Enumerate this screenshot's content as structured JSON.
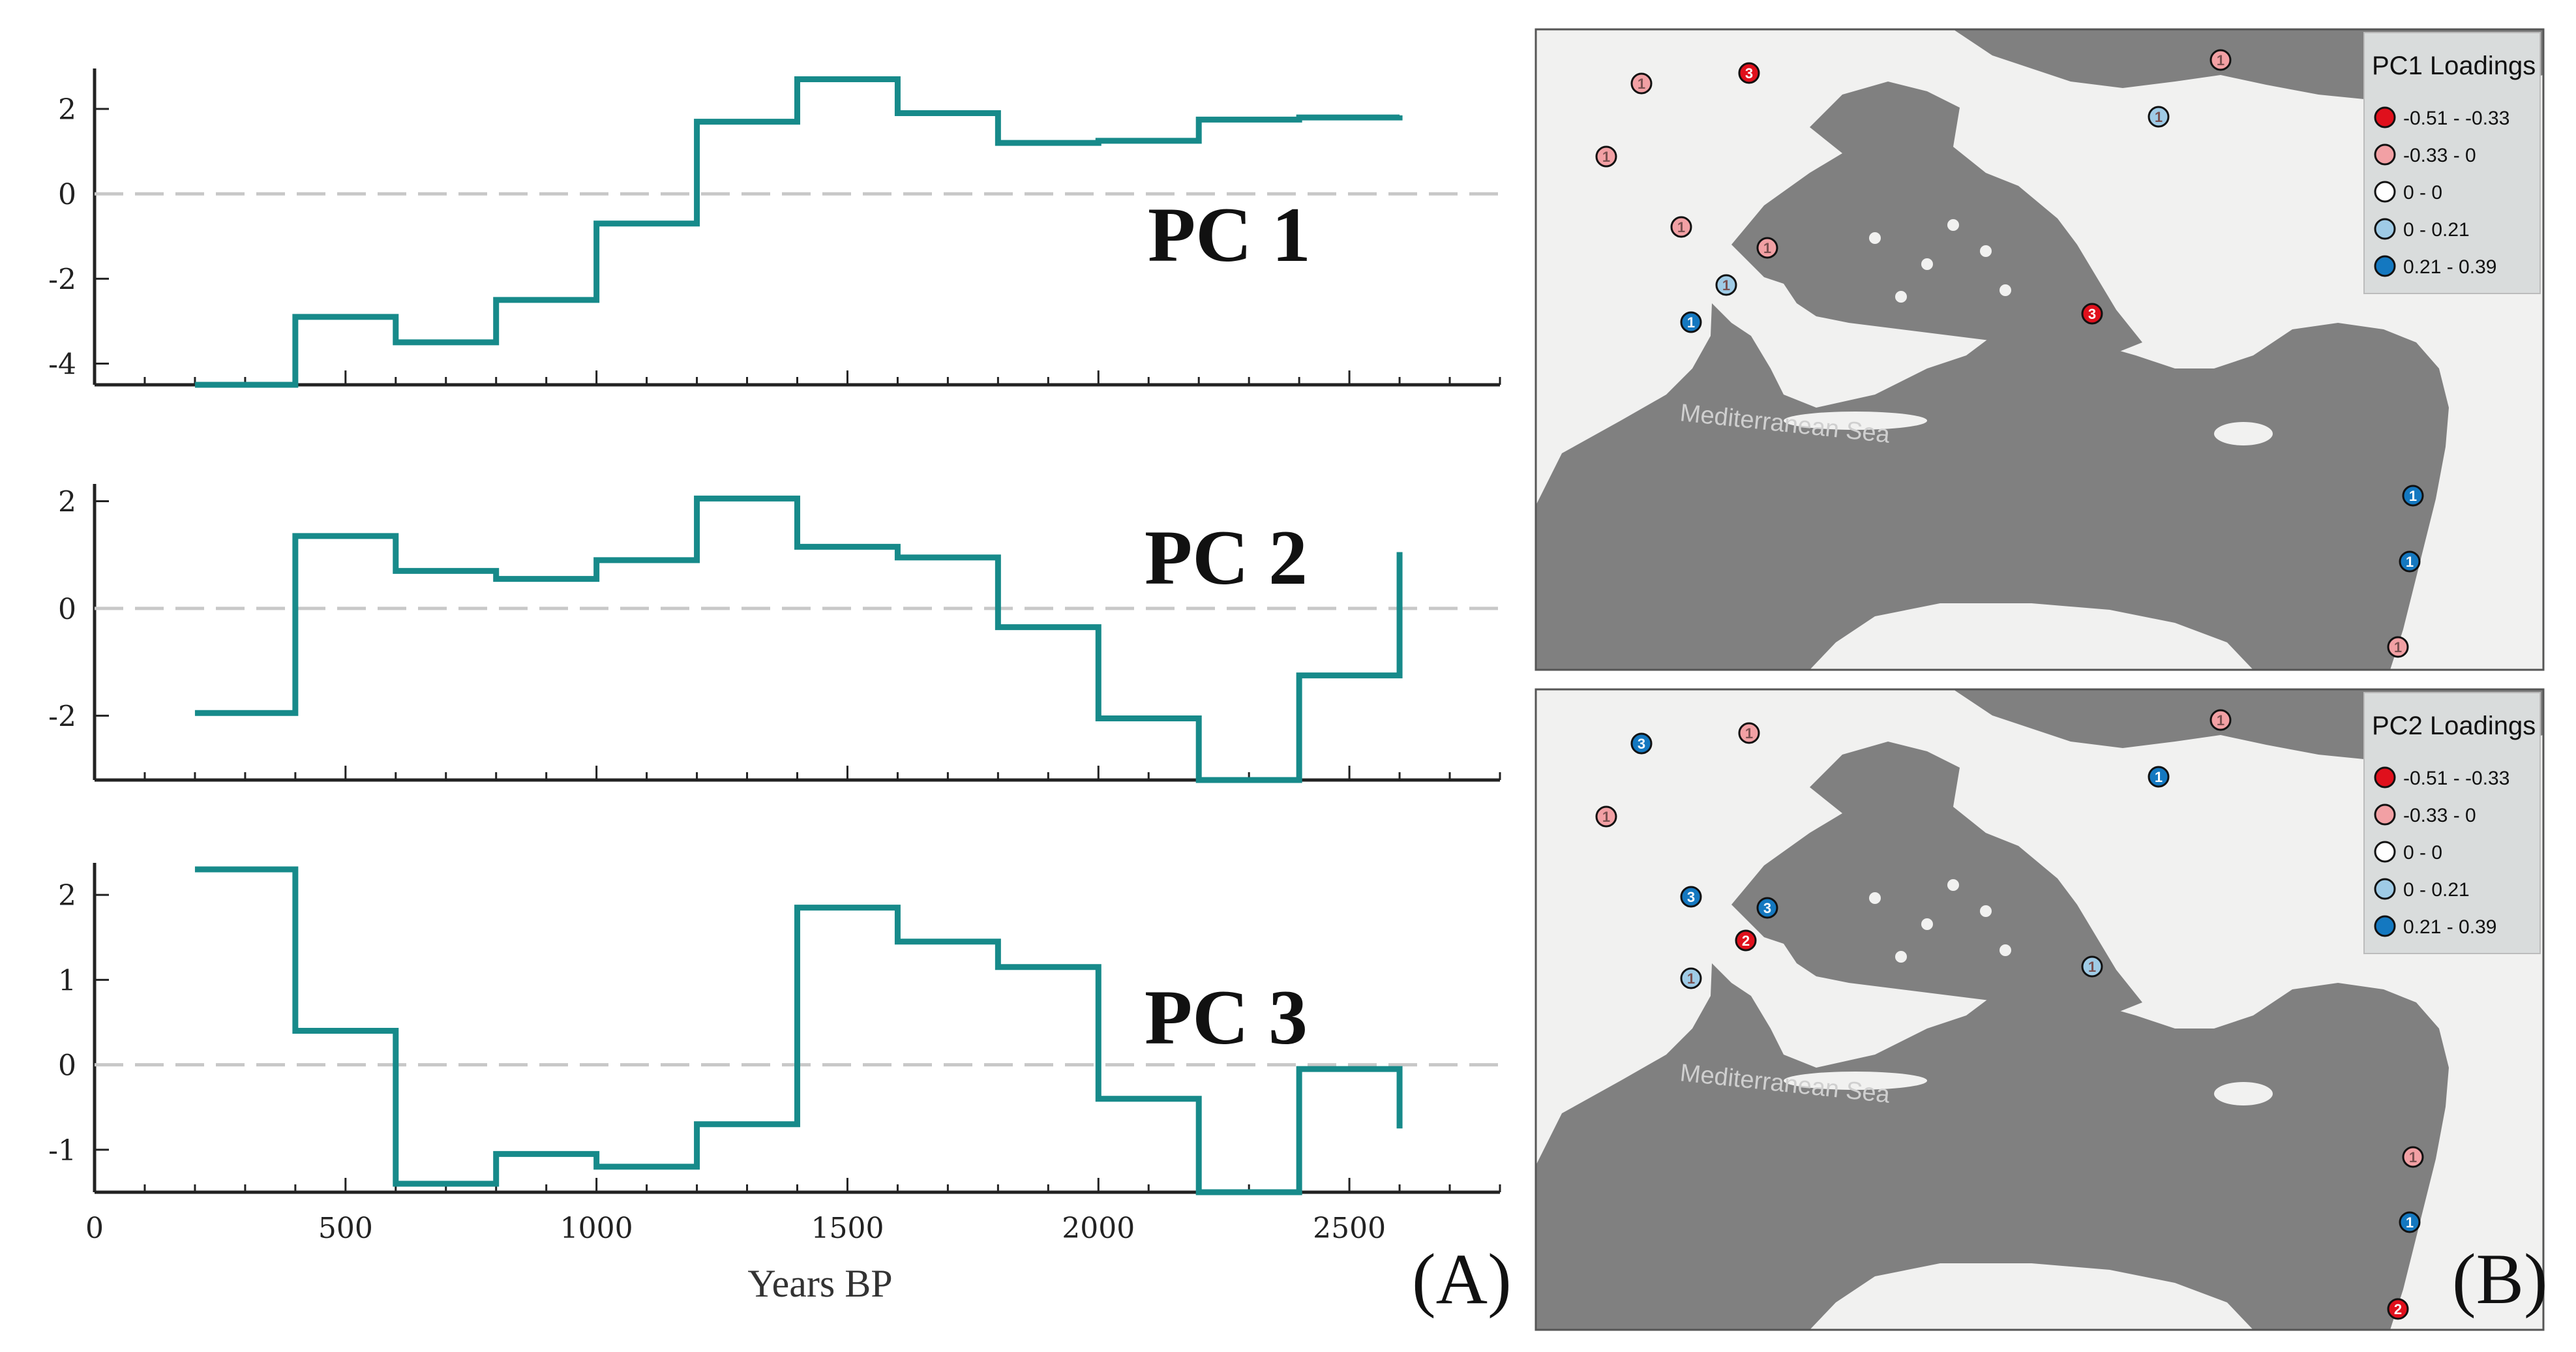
{
  "chart_data": [
    {
      "type": "line",
      "step": "post",
      "series_label": "PC 1",
      "xlim": [
        0,
        2800
      ],
      "ylim": [
        -4.5,
        2.8
      ],
      "yticks": [
        2,
        0,
        -2,
        -4
      ],
      "x": [
        200,
        400,
        600,
        800,
        1000,
        1200,
        1400,
        1600,
        1800,
        2000,
        2200,
        2400,
        2600
      ],
      "values": [
        -4.5,
        -2.9,
        -3.5,
        -2.5,
        -0.7,
        1.7,
        2.7,
        1.9,
        1.2,
        1.25,
        1.75,
        1.8,
        1.85
      ],
      "line_color": "#178a8a",
      "zero_line": true
    },
    {
      "type": "line",
      "step": "post",
      "series_label": "PC 2",
      "xlim": [
        0,
        2800
      ],
      "ylim": [
        -3.2,
        2.2
      ],
      "yticks": [
        2,
        0,
        -2
      ],
      "x": [
        200,
        400,
        600,
        800,
        1000,
        1200,
        1400,
        1600,
        1800,
        2000,
        2200,
        2400,
        2600
      ],
      "values": [
        -1.95,
        1.35,
        0.7,
        0.55,
        0.9,
        2.05,
        1.15,
        0.95,
        -0.35,
        -2.05,
        -3.2,
        -1.25,
        1.05
      ],
      "line_color": "#178a8a",
      "zero_line": true
    },
    {
      "type": "line",
      "step": "post",
      "series_label": "PC 3",
      "xlim": [
        0,
        2800
      ],
      "ylim": [
        -1.5,
        2.3
      ],
      "yticks": [
        2,
        1,
        0,
        -1
      ],
      "x": [
        200,
        400,
        600,
        800,
        1000,
        1200,
        1400,
        1600,
        1800,
        2000,
        2200,
        2400,
        2600
      ],
      "values": [
        2.3,
        0.4,
        -1.4,
        -1.05,
        -1.2,
        -0.7,
        1.85,
        1.45,
        1.15,
        -0.4,
        -1.5,
        -0.05,
        -0.75
      ],
      "line_color": "#178a8a",
      "zero_line": true,
      "xticks": [
        0,
        500,
        1000,
        1500,
        2000,
        2500
      ],
      "xlabel": "Years BP"
    }
  ],
  "panels": {
    "a_letter": "(A)",
    "b_letter": "(B)"
  },
  "maps": [
    {
      "legend_title": "PC1 Loadings",
      "sea_label": "Mediterranean Sea",
      "legend": [
        {
          "label": "-0.51 - -0.33",
          "color": "#e0101c"
        },
        {
          "label": "-0.33 - 0",
          "color": "#f2a0a4"
        },
        {
          "label": "0 - 0",
          "color": "#ffffff"
        },
        {
          "label": "0 - 0.21",
          "color": "#9fcbe6"
        },
        {
          "label": "0.21 - 0.39",
          "color": "#1478c0"
        }
      ],
      "sites": [
        {
          "label": "3",
          "cls": 0
        },
        {
          "label": "1",
          "cls": 1
        },
        {
          "label": "1",
          "cls": 1
        },
        {
          "label": "1",
          "cls": 3
        },
        {
          "label": "1",
          "cls": 1
        },
        {
          "label": "1",
          "cls": 1
        },
        {
          "label": "1",
          "cls": 1
        },
        {
          "label": "1",
          "cls": 3
        },
        {
          "label": "1",
          "cls": 4
        },
        {
          "label": "3",
          "cls": 0
        },
        {
          "label": "1",
          "cls": 4
        },
        {
          "label": "1",
          "cls": 4
        },
        {
          "label": "1",
          "cls": 1
        }
      ]
    },
    {
      "legend_title": "PC2 Loadings",
      "sea_label": "Mediterranean Sea",
      "legend": [
        {
          "label": "-0.51 - -0.33",
          "color": "#e0101c"
        },
        {
          "label": "-0.33 - 0",
          "color": "#f2a0a4"
        },
        {
          "label": "0 - 0",
          "color": "#ffffff"
        },
        {
          "label": "0 - 0.21",
          "color": "#9fcbe6"
        },
        {
          "label": "0.21 - 0.39",
          "color": "#1478c0"
        }
      ],
      "sites": [
        {
          "label": "3",
          "cls": 4
        },
        {
          "label": "1",
          "cls": 1
        },
        {
          "label": "1",
          "cls": 1
        },
        {
          "label": "1",
          "cls": 4
        },
        {
          "label": "1",
          "cls": 1
        },
        {
          "label": "3",
          "cls": 4
        },
        {
          "label": "3",
          "cls": 4
        },
        {
          "label": "2",
          "cls": 0
        },
        {
          "label": "1",
          "cls": 3
        },
        {
          "label": "1",
          "cls": 3
        },
        {
          "label": "1",
          "cls": 1
        },
        {
          "label": "1",
          "cls": 4
        },
        {
          "label": "2",
          "cls": 0
        }
      ]
    }
  ]
}
